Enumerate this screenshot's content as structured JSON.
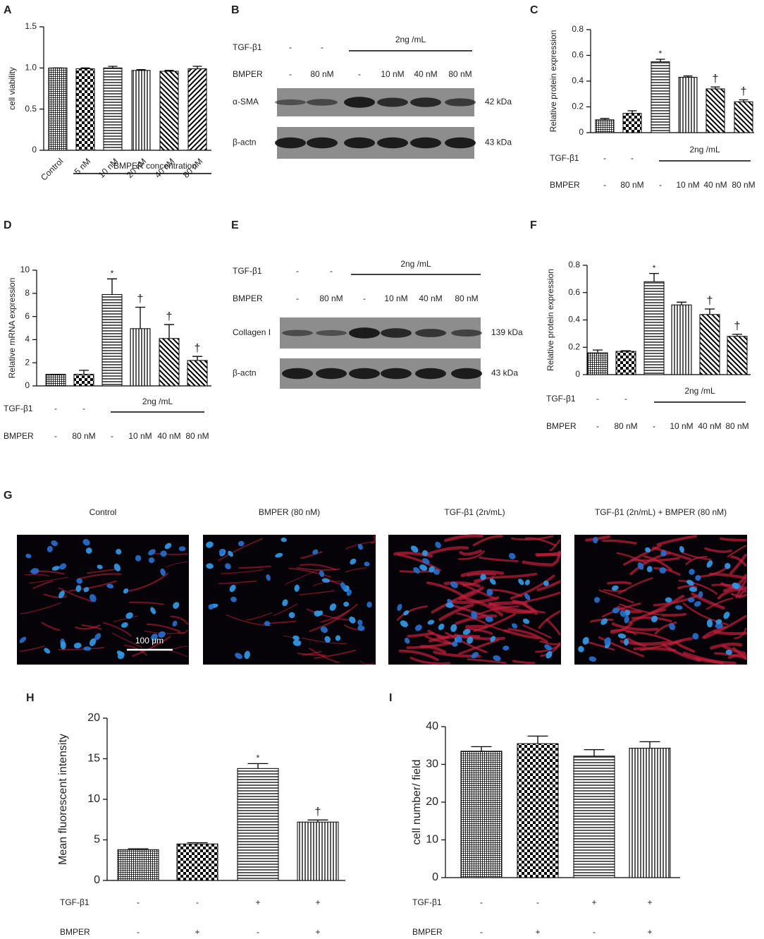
{
  "chart_data": [
    {
      "panel": "A",
      "type": "bar",
      "ylabel": "cell viability",
      "categories": [
        "Control",
        "5 nM",
        "10 nM",
        "20 nM",
        "40 nM",
        "80 nM"
      ],
      "values": [
        1.0,
        0.99,
        1.0,
        0.97,
        0.96,
        0.99
      ],
      "errors": [
        0,
        0.01,
        0.02,
        0.01,
        0.01,
        0.03
      ],
      "patterns": [
        "crosshatch",
        "checker",
        "hlines",
        "vlines",
        "diag",
        "diag2"
      ],
      "ylim": [
        0,
        1.5
      ],
      "yticks": [
        0,
        0.5,
        {
          "value": 1,
          "label": "1.0"
        },
        1.5
      ],
      "annotation": "BMPER concentration"
    },
    {
      "panel": "C",
      "type": "bar",
      "ylabel": "Relative protein expression",
      "values": [
        0.1,
        0.15,
        0.55,
        0.43,
        0.34,
        0.24
      ],
      "errors": [
        0.01,
        0.02,
        0.02,
        0.01,
        0.015,
        0.015
      ],
      "significance": [
        null,
        null,
        "*",
        null,
        "†",
        "†"
      ],
      "patterns": [
        "crosshatch",
        "checker",
        "hlines",
        "vlines",
        "diag",
        "diag"
      ],
      "ylim": [
        0,
        0.8
      ],
      "yticks": [
        0,
        0.2,
        0.4,
        0.6,
        0.8
      ],
      "treatment_rows": [
        {
          "name": "TGF-β1",
          "labels": [
            "-",
            "-"
          ],
          "span_label": "2ng /mL"
        },
        {
          "name": "BMPER",
          "labels": [
            "-",
            "80 nM",
            "-",
            "10 nM",
            "40 nM",
            "80 nM"
          ]
        }
      ]
    },
    {
      "panel": "D",
      "type": "bar",
      "ylabel": "Relative mRNA expression",
      "values": [
        1.0,
        1.0,
        7.9,
        4.95,
        4.1,
        2.2
      ],
      "errors": [
        0,
        0.35,
        1.35,
        1.85,
        1.2,
        0.35
      ],
      "significance": [
        null,
        null,
        "*",
        "†",
        "†",
        "†"
      ],
      "patterns": [
        "crosshatch",
        "checker",
        "hlines",
        "vlines",
        "diag",
        "diag"
      ],
      "ylim": [
        0,
        10
      ],
      "yticks": [
        0,
        2,
        4,
        6,
        8,
        10
      ],
      "treatment_rows": [
        {
          "name": "TGF-β1",
          "labels": [
            "-",
            "-"
          ],
          "span_label": "2ng /mL"
        },
        {
          "name": "BMPER",
          "labels": [
            "-",
            "80 nM",
            "-",
            "10 nM",
            "40 nM",
            "80 nM"
          ]
        }
      ]
    },
    {
      "panel": "F",
      "type": "bar",
      "ylabel": "Relative protein expression",
      "values": [
        0.16,
        0.17,
        0.68,
        0.51,
        0.44,
        0.28
      ],
      "errors": [
        0.02,
        0.005,
        0.06,
        0.02,
        0.04,
        0.015
      ],
      "significance": [
        null,
        null,
        "*",
        null,
        "†",
        "†"
      ],
      "patterns": [
        "crosshatch",
        "checker",
        "hlines",
        "vlines",
        "diag",
        "diag"
      ],
      "ylim": [
        0,
        0.8
      ],
      "yticks": [
        0,
        0.2,
        0.4,
        0.6,
        0.8
      ],
      "treatment_rows": [
        {
          "name": "TGF-β1",
          "labels": [
            "-",
            "-"
          ],
          "span_label": "2ng /mL"
        },
        {
          "name": "BMPER",
          "labels": [
            "-",
            "80 nM",
            "-",
            "10 nM",
            "40 nM",
            "80 nM"
          ]
        }
      ]
    },
    {
      "panel": "H",
      "type": "bar",
      "ylabel": "Mean fluorescent intensity",
      "values": [
        3.8,
        4.5,
        13.8,
        7.2
      ],
      "errors": [
        0.1,
        0.15,
        0.6,
        0.25
      ],
      "significance": [
        null,
        null,
        "*",
        "†"
      ],
      "patterns": [
        "crosshatch",
        "checker",
        "hlines",
        "vlines"
      ],
      "ylim": [
        0,
        20
      ],
      "yticks": [
        0,
        5,
        10,
        15,
        20
      ],
      "treatment_rows": [
        {
          "name": "TGF-β1",
          "labels": [
            "-",
            "-",
            "+",
            "+"
          ]
        },
        {
          "name": "BMPER",
          "labels": [
            "-",
            "+",
            "-",
            "+"
          ]
        }
      ]
    },
    {
      "panel": "I",
      "type": "bar",
      "ylabel": "cell number/ field",
      "values": [
        33.5,
        35.5,
        32.2,
        34.3
      ],
      "errors": [
        1.2,
        2.0,
        1.7,
        1.7
      ],
      "patterns": [
        "crosshatch",
        "checker",
        "hlines",
        "vlines"
      ],
      "ylim": [
        0,
        40
      ],
      "yticks": [
        0,
        10,
        20,
        30,
        40
      ],
      "treatment_rows": [
        {
          "name": "TGF-β1",
          "labels": [
            "-",
            "-",
            "+",
            "+"
          ]
        },
        {
          "name": "BMPER",
          "labels": [
            "-",
            "+",
            "-",
            "+"
          ]
        }
      ]
    }
  ],
  "blots": [
    {
      "panel": "B",
      "treatment_rows": [
        {
          "name": "TGF-β1",
          "labels": [
            "-",
            "-"
          ],
          "span_label": "2ng /mL"
        },
        {
          "name": "BMPER",
          "labels": [
            "-",
            "80 nM",
            "-",
            "10 nM",
            "40 nM",
            "80 nM"
          ]
        }
      ],
      "bands": [
        {
          "name": "α-SMA",
          "size": "42 kDa"
        },
        {
          "name": "β-actn",
          "size": "43 kDa"
        }
      ]
    },
    {
      "panel": "E",
      "treatment_rows": [
        {
          "name": "TGF-β1",
          "labels": [
            "-",
            "-"
          ],
          "span_label": "2ng /mL"
        },
        {
          "name": "BMPER",
          "labels": [
            "-",
            "80 nM",
            "-",
            "10 nM",
            "40 nM",
            "80 nM"
          ]
        }
      ],
      "bands": [
        {
          "name": "Collagen I",
          "size": "139 kDa"
        },
        {
          "name": "β-actn",
          "size": "43 kDa"
        }
      ]
    }
  ],
  "micrographs": {
    "panel": "G",
    "captions": [
      "Control",
      "BMPER (80 nM)",
      "TGF-β1 (2n/mL)",
      "TGF-β1 (2n/mL) + BMPER (80 nM)"
    ],
    "scale_bar": "100 μm"
  }
}
